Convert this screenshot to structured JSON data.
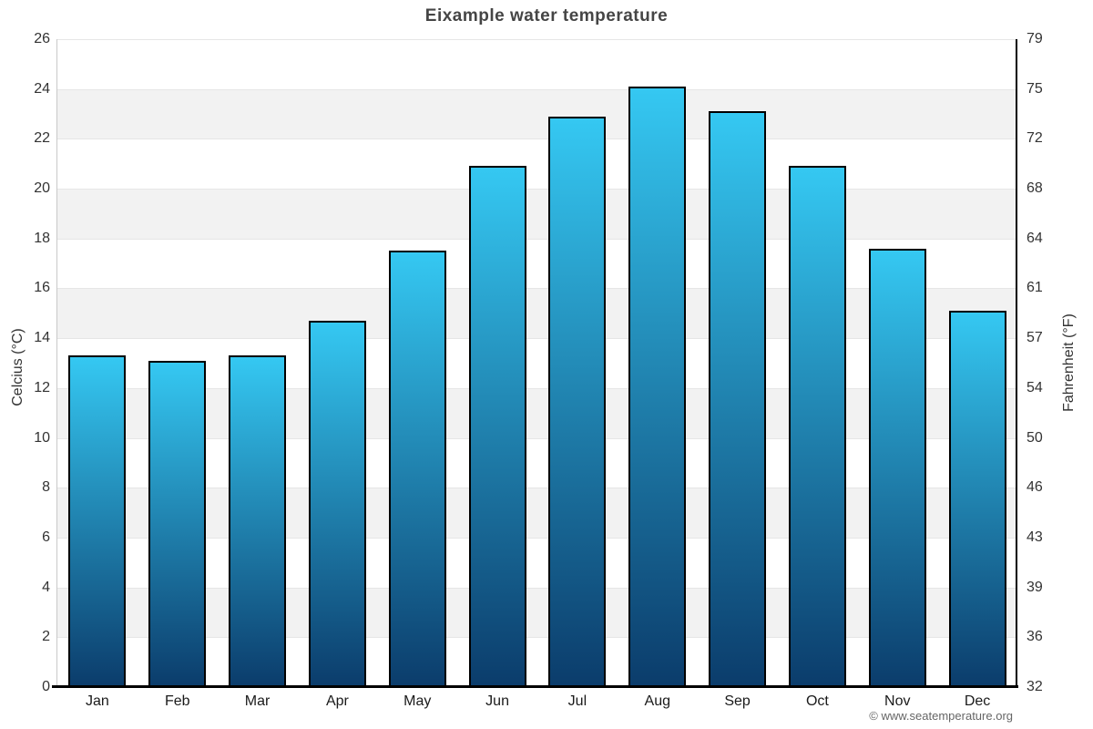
{
  "title": "Eixample water temperature",
  "footer": {
    "credit": "© www.seatemperature.org"
  },
  "chart_data": {
    "type": "bar",
    "title": "Eixample water temperature",
    "categories": [
      "Jan",
      "Feb",
      "Mar",
      "Apr",
      "May",
      "Jun",
      "Jul",
      "Aug",
      "Sep",
      "Oct",
      "Nov",
      "Dec"
    ],
    "values": [
      13.3,
      13.1,
      13.3,
      14.7,
      17.5,
      20.9,
      22.9,
      24.1,
      23.1,
      20.9,
      17.6,
      15.1
    ],
    "ylabel_left": "Celcius (°C)",
    "ylabel_right": "Fahrenheit (°F)",
    "ylim": [
      0,
      26
    ],
    "yticks_celsius": [
      0,
      2,
      4,
      6,
      8,
      10,
      12,
      14,
      16,
      18,
      20,
      22,
      24,
      26
    ],
    "yticks_fahrenheit": [
      "32",
      "36",
      "39",
      "43",
      "46",
      "50",
      "54",
      "57",
      "61",
      "64",
      "68",
      "72",
      "75",
      "79"
    ],
    "grid": true,
    "legend": "none",
    "band_color": "#f2f2f2",
    "gridline_color": "#e6e6e6",
    "bar_gradient_top": "#35c8f2",
    "bar_gradient_bottom": "#0b3c6b",
    "bar_border_color": "#000000"
  }
}
